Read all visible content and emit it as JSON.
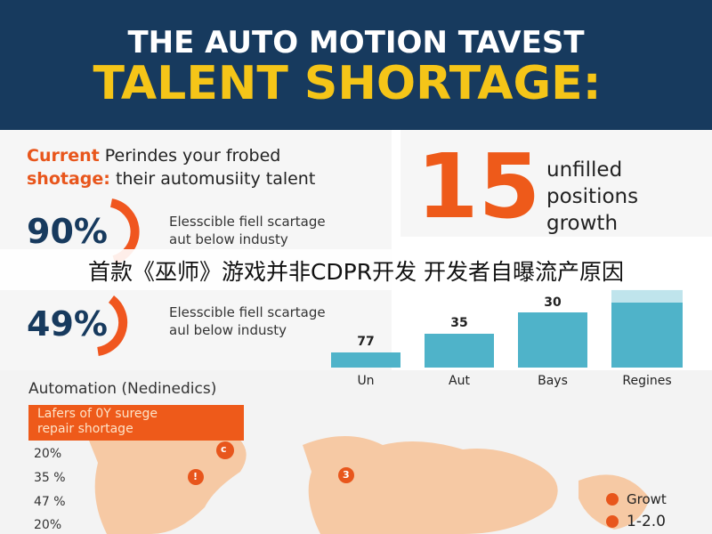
{
  "header": {
    "line1": "THE AUTO MOTION TAVEST",
    "line2": "TALENT SHORTAGE:"
  },
  "intro": {
    "highlight1": "Current",
    "rest1": "Perindes your frobed",
    "highlight2": "shotage:",
    "rest2": "their automusiity talent"
  },
  "stats": [
    {
      "value": "90%",
      "text1": "Elesscible fiell scartage",
      "text2": "aut below industy"
    },
    {
      "value": "49%",
      "text1": "Elesscible fiell scartage",
      "text2": "aul below industy"
    }
  ],
  "highlight": {
    "number": "15",
    "line1": "unfilled",
    "line2": "positions",
    "line3": "growth"
  },
  "caption": "首款《巫师》游戏并非CDPR开发 开发者自曝流产原因",
  "bars": {
    "labels": [
      "77",
      "35",
      "30"
    ],
    "categories": [
      "Un",
      "Aut",
      "Bays",
      "Regines"
    ]
  },
  "map": {
    "title": "Automation (Nedinedics)",
    "banner1": "Lafers of 0Y surege",
    "banner2": "repair shortage",
    "list": [
      "20%",
      "35 %",
      "47 %",
      "20%"
    ],
    "markers": [
      "c",
      "!",
      "3"
    ],
    "legend": [
      "Growt",
      "1-2.0"
    ]
  }
}
